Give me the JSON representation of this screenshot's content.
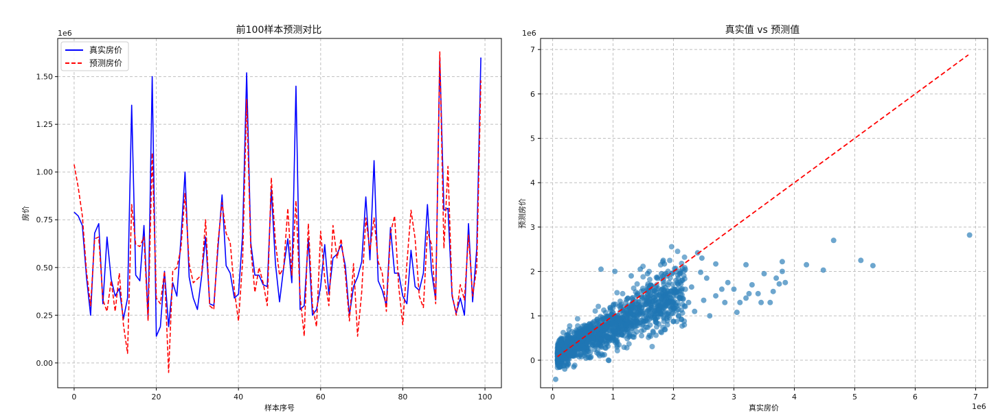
{
  "chart_data": [
    {
      "type": "line",
      "title": "前100样本预测对比",
      "xlabel": "样本序号",
      "ylabel": "房价",
      "y_offset_text": "1e6",
      "xlim": [
        -4,
        104
      ],
      "ylim": [
        -0.13,
        1.7
      ],
      "y_scale": 1000000,
      "grid": true,
      "legend_position": "top-left",
      "x_ticks": [
        0,
        20,
        40,
        60,
        80,
        100
      ],
      "x_tick_labels": [
        "0",
        "20",
        "40",
        "60",
        "80",
        "100"
      ],
      "y_ticks": [
        0.0,
        0.25,
        0.5,
        0.75,
        1.0,
        1.25,
        1.5
      ],
      "y_tick_labels": [
        "0.00",
        "0.25",
        "0.50",
        "0.75",
        "1.00",
        "1.25",
        "1.50"
      ],
      "series": [
        {
          "name": "真实房价",
          "color": "#0000ff",
          "style": "solid",
          "values": [
            0.79,
            0.77,
            0.72,
            0.45,
            0.25,
            0.68,
            0.73,
            0.31,
            0.66,
            0.44,
            0.35,
            0.39,
            0.23,
            0.34,
            1.35,
            0.46,
            0.43,
            0.72,
            0.23,
            1.5,
            0.14,
            0.19,
            0.48,
            0.19,
            0.42,
            0.35,
            0.65,
            1.0,
            0.45,
            0.34,
            0.28,
            0.45,
            0.66,
            0.31,
            0.3,
            0.6,
            0.88,
            0.51,
            0.47,
            0.34,
            0.36,
            0.67,
            1.52,
            0.63,
            0.46,
            0.46,
            0.41,
            0.4,
            0.91,
            0.52,
            0.32,
            0.5,
            0.65,
            0.42,
            1.45,
            0.28,
            0.3,
            0.65,
            0.25,
            0.28,
            0.4,
            0.62,
            0.36,
            0.55,
            0.57,
            0.62,
            0.51,
            0.25,
            0.4,
            0.45,
            0.53,
            0.87,
            0.54,
            1.06,
            0.43,
            0.38,
            0.3,
            0.71,
            0.47,
            0.47,
            0.35,
            0.31,
            0.59,
            0.4,
            0.38,
            0.47,
            0.83,
            0.48,
            0.33,
            1.6,
            0.8,
            0.81,
            0.35,
            0.26,
            0.34,
            0.25,
            0.73,
            0.32,
            0.6,
            1.6
          ]
        },
        {
          "name": "预测房价",
          "color": "#ff0000",
          "style": "dashed",
          "values": [
            1.04,
            0.92,
            0.77,
            0.48,
            0.3,
            0.65,
            0.66,
            0.33,
            0.27,
            0.43,
            0.27,
            0.47,
            0.2,
            0.05,
            0.83,
            0.62,
            0.61,
            0.66,
            0.22,
            1.1,
            0.34,
            0.31,
            0.48,
            -0.05,
            0.48,
            0.5,
            0.6,
            0.89,
            0.52,
            0.42,
            0.44,
            0.46,
            0.75,
            0.3,
            0.28,
            0.63,
            0.84,
            0.68,
            0.63,
            0.38,
            0.22,
            0.53,
            1.38,
            0.6,
            0.37,
            0.5,
            0.42,
            0.3,
            0.97,
            0.63,
            0.46,
            0.5,
            0.81,
            0.46,
            0.85,
            0.35,
            0.14,
            0.73,
            0.3,
            0.19,
            0.69,
            0.44,
            0.3,
            0.72,
            0.55,
            0.65,
            0.47,
            0.22,
            0.52,
            0.14,
            0.37,
            0.76,
            0.59,
            0.76,
            0.53,
            0.47,
            0.27,
            0.68,
            0.77,
            0.4,
            0.2,
            0.52,
            0.8,
            0.65,
            0.35,
            0.29,
            0.69,
            0.62,
            0.31,
            1.63,
            0.6,
            1.03,
            0.36,
            0.25,
            0.41,
            0.33,
            0.67,
            0.35,
            0.5,
            1.48
          ]
        }
      ]
    },
    {
      "type": "scatter",
      "title": "真实值 vs 预测值",
      "xlabel": "真实房价",
      "ylabel": "预测房价",
      "x_offset_text": "1e6",
      "y_offset_text": "1e6",
      "xlim": [
        -0.2,
        7.2
      ],
      "ylim": [
        -0.62,
        7.25
      ],
      "scale": 1000000,
      "grid": true,
      "x_ticks": [
        0,
        1,
        2,
        3,
        4,
        5,
        6,
        7
      ],
      "x_tick_labels": [
        "0",
        "1",
        "2",
        "3",
        "4",
        "5",
        "6",
        "7"
      ],
      "y_ticks": [
        0,
        1,
        2,
        3,
        4,
        5,
        6,
        7
      ],
      "y_tick_labels": [
        "0",
        "1",
        "2",
        "3",
        "4",
        "5",
        "6",
        "7"
      ],
      "point_color": "#1f77b4",
      "reference_line": {
        "color": "#ff0000",
        "style": "dashed",
        "x": [
          0.08,
          6.88
        ],
        "y": [
          0.08,
          6.88
        ]
      },
      "cluster_points": {
        "count": 1400,
        "x_range": [
          0.08,
          2.2
        ],
        "slope": 0.66,
        "intercept": 0.1,
        "seed": 7
      },
      "points": [
        [
          0.05,
          -0.43
        ],
        [
          0.2,
          -0.2
        ],
        [
          0.35,
          -0.15
        ],
        [
          0.8,
          2.05
        ],
        [
          1.03,
          2.0
        ],
        [
          1.3,
          1.9
        ],
        [
          1.45,
          2.05
        ],
        [
          1.57,
          1.95
        ],
        [
          1.8,
          1.95
        ],
        [
          1.83,
          2.25
        ],
        [
          1.85,
          2.17
        ],
        [
          2.4,
          2.42
        ],
        [
          2.47,
          2.3
        ],
        [
          2.45,
          1.98
        ],
        [
          2.55,
          1.85
        ],
        [
          2.7,
          2.17
        ],
        [
          2.9,
          1.75
        ],
        [
          2.5,
          1.35
        ],
        [
          2.7,
          1.45
        ],
        [
          2.8,
          1.6
        ],
        [
          3.0,
          1.6
        ],
        [
          3.1,
          1.3
        ],
        [
          3.2,
          1.4
        ],
        [
          3.25,
          1.5
        ],
        [
          3.3,
          1.7
        ],
        [
          3.4,
          1.5
        ],
        [
          3.5,
          1.95
        ],
        [
          3.6,
          1.3
        ],
        [
          3.65,
          1.55
        ],
        [
          3.7,
          1.85
        ],
        [
          3.8,
          2.0
        ],
        [
          3.8,
          2.22
        ],
        [
          3.85,
          1.75
        ],
        [
          3.75,
          1.72
        ],
        [
          3.45,
          1.3
        ],
        [
          3.2,
          2.15
        ],
        [
          4.2,
          2.15
        ],
        [
          4.48,
          2.03
        ],
        [
          4.65,
          2.7
        ],
        [
          5.1,
          2.25
        ],
        [
          5.3,
          2.13
        ],
        [
          6.9,
          2.82
        ],
        [
          3.05,
          1.08
        ],
        [
          2.15,
          1.8
        ],
        [
          2.25,
          1.3
        ],
        [
          2.35,
          1.1
        ],
        [
          2.6,
          1.0
        ],
        [
          2.85,
          1.3
        ],
        [
          2.05,
          1.45
        ],
        [
          2.3,
          1.65
        ]
      ]
    }
  ]
}
